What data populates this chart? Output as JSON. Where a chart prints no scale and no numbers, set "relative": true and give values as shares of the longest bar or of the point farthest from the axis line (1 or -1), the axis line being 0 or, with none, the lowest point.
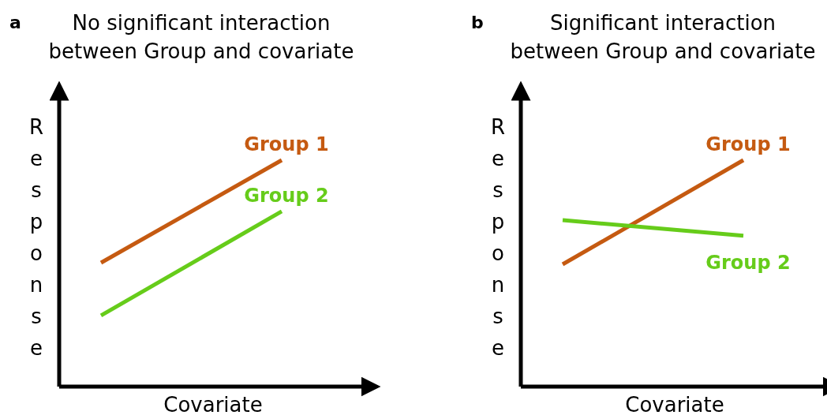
{
  "chart_data": [
    {
      "type": "line",
      "title": "No significant interaction between Group and covariate",
      "xlabel": "Covariate",
      "ylabel": "Response",
      "annotations": [
        "a"
      ],
      "relative": true,
      "categories": [
        null,
        null
      ],
      "marker": "none",
      "series": [
        {
          "name": "Group 1",
          "color": "#c55a11",
          "values": [
            0.547,
            1
          ]
        },
        {
          "name": "Group 2",
          "color": "#66cc1a",
          "values": [
            0.314,
            0.774
          ]
        }
      ]
    },
    {
      "type": "line",
      "title": "Significant interaction between Group and covariate",
      "xlabel": "Covariate",
      "ylabel": "Response",
      "annotations": [
        "b"
      ],
      "relative": true,
      "categories": [
        null,
        null
      ],
      "marker": "none",
      "series": [
        {
          "name": "Group 1",
          "color": "#c55a11",
          "values": [
            0.54,
            1
          ]
        },
        {
          "name": "Group 2",
          "color": "#66cc1a",
          "values": [
            0.735,
            0.666
          ]
        }
      ]
    }
  ]
}
